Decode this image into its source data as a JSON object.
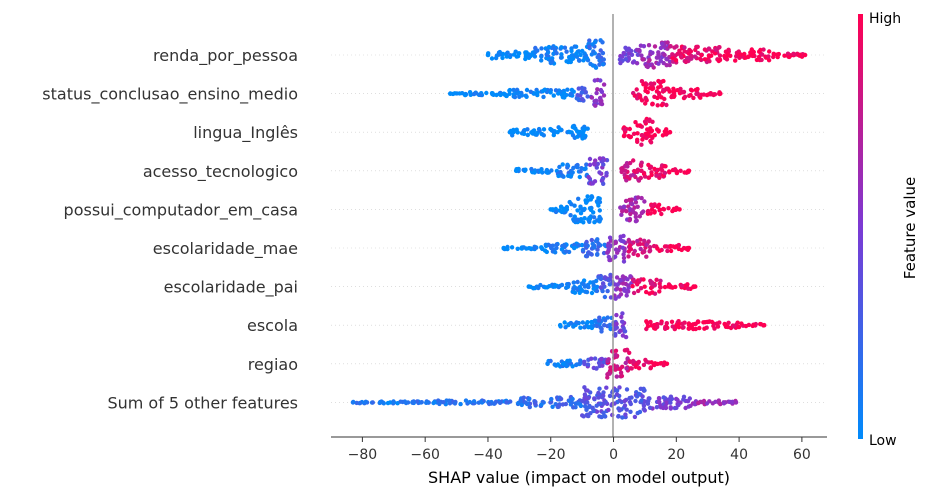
{
  "chart_data": {
    "type": "scatter",
    "subtype": "shap-beeswarm",
    "title": "",
    "xlabel": "SHAP value (impact on model output)",
    "xlim": [
      -90,
      68
    ],
    "xticks": [
      -80,
      -60,
      -40,
      -20,
      0,
      20,
      40,
      60
    ],
    "xtick_labels": [
      "−80",
      "−60",
      "−40",
      "−20",
      "0",
      "20",
      "40",
      "60"
    ],
    "colorbar": {
      "title": "Feature value",
      "high_label": "High",
      "low_label": "Low",
      "low_color": "#008bfb",
      "mid_color": "#7c3ad4",
      "high_color": "#ff0052"
    },
    "features": [
      {
        "name": "renda_por_pessoa",
        "min": -40,
        "max": 61,
        "segments": [
          {
            "x0": -40,
            "x1": -25,
            "w": 0.25,
            "v": 0.0
          },
          {
            "x0": -25,
            "x1": -8,
            "w": 0.55,
            "v": 0.05
          },
          {
            "x0": -8,
            "x1": -3,
            "w": 0.95,
            "v": 0.15
          },
          {
            "x0": 2,
            "x1": 8,
            "w": 0.55,
            "v": 0.45
          },
          {
            "x0": 8,
            "x1": 18,
            "w": 0.8,
            "v": 0.6
          },
          {
            "x0": 18,
            "x1": 35,
            "w": 0.55,
            "v": 0.9
          },
          {
            "x0": 35,
            "x1": 50,
            "w": 0.35,
            "v": 1.0
          },
          {
            "x0": 50,
            "x1": 61,
            "w": 0.15,
            "v": 1.0
          }
        ]
      },
      {
        "name": "status_conclusao_ensino_medio",
        "min": -52,
        "max": 34,
        "segments": [
          {
            "x0": -52,
            "x1": -35,
            "w": 0.1,
            "v": 0.0
          },
          {
            "x0": -35,
            "x1": -12,
            "w": 0.25,
            "v": 0.02
          },
          {
            "x0": -12,
            "x1": -7,
            "w": 0.45,
            "v": 0.3
          },
          {
            "x0": -7,
            "x1": -3,
            "w": 0.85,
            "v": 0.55
          },
          {
            "x0": 6,
            "x1": 9,
            "w": 0.3,
            "v": 0.9
          },
          {
            "x0": 9,
            "x1": 18,
            "w": 0.8,
            "v": 1.0
          },
          {
            "x0": 18,
            "x1": 28,
            "w": 0.3,
            "v": 1.0
          },
          {
            "x0": 28,
            "x1": 34,
            "w": 0.1,
            "v": 1.0
          }
        ]
      },
      {
        "name": "lingua_Inglês",
        "min": -33,
        "max": 18,
        "segments": [
          {
            "x0": -33,
            "x1": -18,
            "w": 0.2,
            "v": 0.0
          },
          {
            "x0": -18,
            "x1": -8,
            "w": 0.4,
            "v": 0.0
          },
          {
            "x0": 3,
            "x1": 7,
            "w": 0.35,
            "v": 1.0
          },
          {
            "x0": 7,
            "x1": 13,
            "w": 0.85,
            "v": 1.0
          },
          {
            "x0": 13,
            "x1": 18,
            "w": 0.2,
            "v": 1.0
          }
        ]
      },
      {
        "name": "acesso_tecnologico",
        "min": -31,
        "max": 24,
        "segments": [
          {
            "x0": -31,
            "x1": -18,
            "w": 0.12,
            "v": 0.0
          },
          {
            "x0": -18,
            "x1": -8,
            "w": 0.4,
            "v": 0.1
          },
          {
            "x0": -8,
            "x1": -2,
            "w": 0.85,
            "v": 0.45
          },
          {
            "x0": 2,
            "x1": 9,
            "w": 0.65,
            "v": 0.8
          },
          {
            "x0": 9,
            "x1": 17,
            "w": 0.45,
            "v": 0.95
          },
          {
            "x0": 17,
            "x1": 24,
            "w": 0.15,
            "v": 1.0
          }
        ]
      },
      {
        "name": "possui_computador_em_casa",
        "min": -20,
        "max": 21,
        "segments": [
          {
            "x0": -20,
            "x1": -14,
            "w": 0.2,
            "v": 0.0
          },
          {
            "x0": -14,
            "x1": -4,
            "w": 0.85,
            "v": 0.0
          },
          {
            "x0": 2,
            "x1": 10,
            "w": 0.75,
            "v": 0.65
          },
          {
            "x0": 10,
            "x1": 16,
            "w": 0.35,
            "v": 1.0
          },
          {
            "x0": 16,
            "x1": 21,
            "w": 0.12,
            "v": 1.0
          }
        ]
      },
      {
        "name": "escolaridade_mae",
        "min": -35,
        "max": 24,
        "segments": [
          {
            "x0": -35,
            "x1": -22,
            "w": 0.08,
            "v": 0.0
          },
          {
            "x0": -22,
            "x1": -10,
            "w": 0.3,
            "v": 0.05
          },
          {
            "x0": -10,
            "x1": -2,
            "w": 0.55,
            "v": 0.2
          },
          {
            "x0": -2,
            "x1": 4,
            "w": 0.85,
            "v": 0.55
          },
          {
            "x0": 4,
            "x1": 12,
            "w": 0.55,
            "v": 0.8
          },
          {
            "x0": 12,
            "x1": 24,
            "w": 0.18,
            "v": 1.0
          }
        ]
      },
      {
        "name": "escolaridade_pai",
        "min": -27,
        "max": 26,
        "segments": [
          {
            "x0": -27,
            "x1": -15,
            "w": 0.12,
            "v": 0.0
          },
          {
            "x0": -15,
            "x1": -5,
            "w": 0.4,
            "v": 0.05
          },
          {
            "x0": -5,
            "x1": 0,
            "w": 0.75,
            "v": 0.3
          },
          {
            "x0": 0,
            "x1": 6,
            "w": 0.8,
            "v": 0.6
          },
          {
            "x0": 6,
            "x1": 15,
            "w": 0.45,
            "v": 0.9
          },
          {
            "x0": 15,
            "x1": 26,
            "w": 0.15,
            "v": 1.0
          }
        ]
      },
      {
        "name": "escola",
        "min": -17,
        "max": 48,
        "segments": [
          {
            "x0": -17,
            "x1": -6,
            "w": 0.2,
            "v": 0.0
          },
          {
            "x0": -6,
            "x1": 0,
            "w": 0.5,
            "v": 0.15
          },
          {
            "x0": 0,
            "x1": 4,
            "w": 0.85,
            "v": 0.45
          },
          {
            "x0": 10,
            "x1": 20,
            "w": 0.25,
            "v": 1.0
          },
          {
            "x0": 20,
            "x1": 42,
            "w": 0.25,
            "v": 1.0
          },
          {
            "x0": 42,
            "x1": 48,
            "w": 0.08,
            "v": 1.0
          }
        ]
      },
      {
        "name": "regiao",
        "min": -21,
        "max": 17,
        "segments": [
          {
            "x0": -21,
            "x1": -10,
            "w": 0.2,
            "v": 0.05
          },
          {
            "x0": -10,
            "x1": -2,
            "w": 0.35,
            "v": 0.4
          },
          {
            "x0": -2,
            "x1": 5,
            "w": 0.95,
            "v": 0.8
          },
          {
            "x0": 5,
            "x1": 12,
            "w": 0.3,
            "v": 0.9
          },
          {
            "x0": 12,
            "x1": 17,
            "w": 0.1,
            "v": 1.0
          }
        ]
      },
      {
        "name": "Sum of 5 other features",
        "min": -83,
        "max": 39,
        "segments": [
          {
            "x0": -83,
            "x1": -60,
            "w": 0.06,
            "v": 0.1
          },
          {
            "x0": -60,
            "x1": -30,
            "w": 0.12,
            "v": 0.15
          },
          {
            "x0": -30,
            "x1": -10,
            "w": 0.35,
            "v": 0.2
          },
          {
            "x0": -10,
            "x1": 10,
            "w": 0.95,
            "v": 0.35
          },
          {
            "x0": 10,
            "x1": 25,
            "w": 0.4,
            "v": 0.45
          },
          {
            "x0": 25,
            "x1": 39,
            "w": 0.12,
            "v": 0.6
          }
        ]
      }
    ]
  }
}
